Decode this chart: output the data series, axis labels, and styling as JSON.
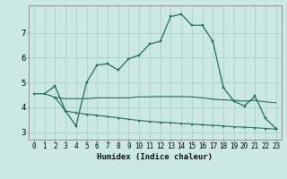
{
  "bg_color": "#cce8e4",
  "grid_color": "#aed4cf",
  "line_color": "#1f6b5a",
  "xlabel": "Humidex (Indice chaleur)",
  "xlabel_fontsize": 6.5,
  "tick_fontsize": 5.5,
  "ylabel_ticks": [
    3,
    4,
    5,
    6,
    7
  ],
  "xlim": [
    -0.5,
    23.5
  ],
  "ylim": [
    2.7,
    8.1
  ],
  "line1_x": [
    0,
    1,
    2,
    3,
    4,
    5,
    6,
    7,
    8,
    9,
    10,
    11,
    12,
    13,
    14,
    15,
    16,
    17,
    18,
    19,
    20,
    21,
    22,
    23
  ],
  "line1_y": [
    4.55,
    4.55,
    4.85,
    3.85,
    3.25,
    5.0,
    5.7,
    5.75,
    5.5,
    5.95,
    6.1,
    6.55,
    6.65,
    7.65,
    7.75,
    7.3,
    7.3,
    6.65,
    4.8,
    4.25,
    4.05,
    4.45,
    3.55,
    3.15
  ],
  "line2_x": [
    0,
    1,
    2,
    3,
    4,
    5,
    6,
    7,
    8,
    9,
    10,
    11,
    12,
    13,
    14,
    15,
    16,
    17,
    18,
    19,
    20,
    21,
    22,
    23
  ],
  "line2_y": [
    4.55,
    4.55,
    4.4,
    4.35,
    4.35,
    4.35,
    4.38,
    4.38,
    4.38,
    4.38,
    4.42,
    4.42,
    4.43,
    4.43,
    4.43,
    4.42,
    4.38,
    4.33,
    4.3,
    4.28,
    4.25,
    4.28,
    4.22,
    4.18
  ],
  "line3_x": [
    2,
    3,
    4,
    5,
    6,
    7,
    8,
    9,
    10,
    11,
    12,
    13,
    14,
    15,
    16,
    17,
    18,
    19,
    20,
    21,
    22,
    23
  ],
  "line3_y": [
    4.4,
    3.85,
    3.78,
    3.72,
    3.68,
    3.63,
    3.58,
    3.52,
    3.47,
    3.43,
    3.4,
    3.38,
    3.35,
    3.33,
    3.3,
    3.28,
    3.25,
    3.22,
    3.2,
    3.18,
    3.15,
    3.12
  ]
}
